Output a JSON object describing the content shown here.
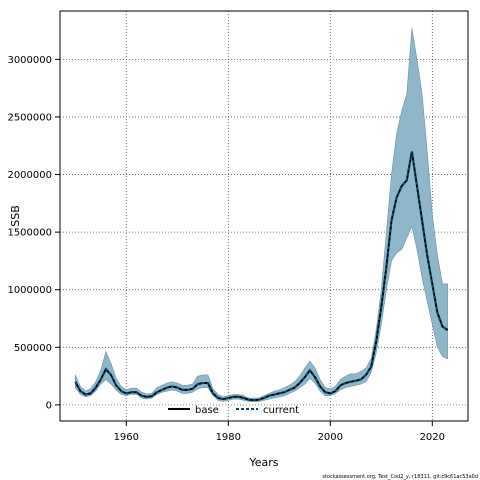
{
  "chart_data": {
    "type": "area",
    "title": "",
    "xlabel": "Years",
    "ylabel": "SSB",
    "xlim": [
      1947,
      2027
    ],
    "ylim": [
      -140000,
      3420000
    ],
    "x_ticks": [
      1960,
      1980,
      2000,
      2020
    ],
    "y_ticks": [
      0,
      500000,
      1000000,
      1500000,
      2000000,
      2500000,
      3000000
    ],
    "y_tick_labels": [
      "0",
      "500000",
      "1000000",
      "1500000",
      "2000000",
      "2500000",
      "3000000"
    ],
    "grid": true,
    "legend_position": "bottom",
    "footer": "stockassessment.org, Test_Cod2_y, r18311, git:c9c61ac53a0d",
    "colors": {
      "band": "#8fb7cb",
      "band_edge": "#6f8fa0",
      "base": "#000000",
      "current": "#004a6e"
    },
    "x": [
      1950,
      1951,
      1952,
      1953,
      1954,
      1955,
      1956,
      1957,
      1958,
      1959,
      1960,
      1961,
      1962,
      1963,
      1964,
      1965,
      1966,
      1967,
      1968,
      1969,
      1970,
      1971,
      1972,
      1973,
      1974,
      1975,
      1976,
      1977,
      1978,
      1979,
      1980,
      1981,
      1982,
      1983,
      1984,
      1985,
      1986,
      1987,
      1988,
      1989,
      1990,
      1991,
      1992,
      1993,
      1994,
      1995,
      1996,
      1997,
      1998,
      1999,
      2000,
      2001,
      2002,
      2003,
      2004,
      2005,
      2006,
      2007,
      2008,
      2009,
      2010,
      2011,
      2012,
      2013,
      2014,
      2015,
      2016,
      2017,
      2018,
      2019,
      2020,
      2021,
      2022,
      2023
    ],
    "band": {
      "name": "confidence interval",
      "lower": [
        150000,
        90000,
        70000,
        80000,
        120000,
        180000,
        220000,
        180000,
        130000,
        90000,
        80000,
        90000,
        90000,
        60000,
        50000,
        60000,
        90000,
        110000,
        120000,
        130000,
        120000,
        100000,
        100000,
        110000,
        140000,
        150000,
        150000,
        80000,
        40000,
        30000,
        40000,
        50000,
        50000,
        40000,
        30000,
        30000,
        30000,
        40000,
        50000,
        60000,
        70000,
        80000,
        100000,
        120000,
        150000,
        180000,
        230000,
        190000,
        120000,
        80000,
        80000,
        100000,
        130000,
        150000,
        160000,
        170000,
        180000,
        200000,
        280000,
        450000,
        700000,
        1000000,
        1250000,
        1320000,
        1350000,
        1450000,
        1550000,
        1350000,
        1100000,
        900000,
        700000,
        500000,
        420000,
        400000
      ],
      "upper": [
        260000,
        160000,
        120000,
        140000,
        200000,
        300000,
        460000,
        360000,
        230000,
        160000,
        130000,
        145000,
        145000,
        110000,
        95000,
        100000,
        150000,
        170000,
        190000,
        200000,
        190000,
        170000,
        170000,
        180000,
        250000,
        260000,
        260000,
        140000,
        90000,
        70000,
        80000,
        90000,
        90000,
        80000,
        60000,
        60000,
        60000,
        80000,
        100000,
        120000,
        130000,
        150000,
        170000,
        200000,
        250000,
        320000,
        380000,
        320000,
        220000,
        150000,
        140000,
        160000,
        220000,
        250000,
        270000,
        270000,
        290000,
        320000,
        400000,
        650000,
        1000000,
        1500000,
        2000000,
        2350000,
        2550000,
        2700000,
        3270000,
        3000000,
        2700000,
        2200000,
        1650000,
        1300000,
        1050000,
        1050000
      ]
    },
    "series": [
      {
        "name": "base",
        "style": "solid",
        "values": [
          200000,
          120000,
          90000,
          100000,
          150000,
          220000,
          310000,
          260000,
          170000,
          120000,
          100000,
          110000,
          110000,
          80000,
          70000,
          75000,
          110000,
          130000,
          150000,
          160000,
          150000,
          130000,
          130000,
          140000,
          180000,
          190000,
          190000,
          100000,
          60000,
          50000,
          60000,
          70000,
          70000,
          60000,
          45000,
          40000,
          45000,
          60000,
          80000,
          90000,
          100000,
          110000,
          130000,
          150000,
          190000,
          240000,
          300000,
          240000,
          160000,
          110000,
          100000,
          120000,
          170000,
          190000,
          200000,
          210000,
          220000,
          260000,
          330000,
          550000,
          850000,
          1200000,
          1600000,
          1800000,
          1900000,
          1950000,
          2200000,
          1900000,
          1600000,
          1300000,
          1050000,
          800000,
          680000,
          650000
        ]
      },
      {
        "name": "current",
        "style": "dashed",
        "values": [
          200000,
          120000,
          90000,
          100000,
          150000,
          220000,
          310000,
          260000,
          170000,
          120000,
          100000,
          110000,
          110000,
          80000,
          70000,
          75000,
          110000,
          130000,
          150000,
          160000,
          150000,
          130000,
          130000,
          140000,
          180000,
          190000,
          190000,
          100000,
          60000,
          50000,
          60000,
          70000,
          70000,
          60000,
          45000,
          40000,
          45000,
          60000,
          80000,
          90000,
          100000,
          110000,
          130000,
          150000,
          190000,
          240000,
          300000,
          240000,
          160000,
          110000,
          100000,
          120000,
          170000,
          190000,
          200000,
          210000,
          220000,
          260000,
          330000,
          550000,
          850000,
          1200000,
          1600000,
          1800000,
          1900000,
          1950000,
          2200000,
          1900000,
          1600000,
          1300000,
          1050000,
          800000,
          680000,
          650000
        ]
      }
    ]
  }
}
